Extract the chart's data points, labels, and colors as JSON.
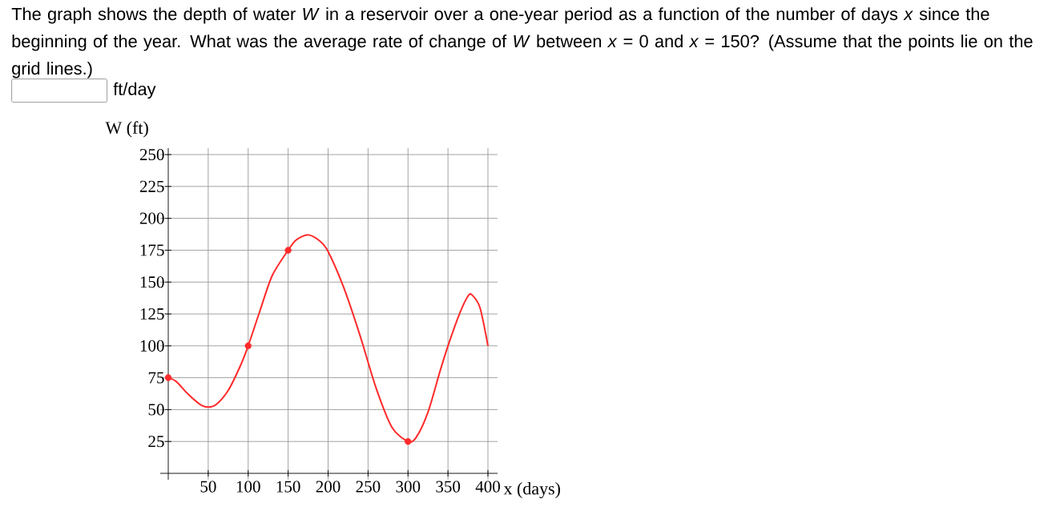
{
  "chart_data": {
    "type": "line",
    "title": "The graph shows the depth of water *W* in a reservoir over a one-year period as a function of the number of days *x* since the beginning of the year. What was the average rate of change of *W* between  *x* = 0  and  *x* = 150? (Assume that the points lie on the grid lines.)",
    "annotations": [
      "ft/day"
    ],
    "xlabel": "x (days)",
    "ylabel": "W (ft)",
    "xlim": [
      -10,
      412
    ],
    "ylim": [
      -5,
      255
    ],
    "xticks": [
      {
        "value": 0,
        "label": null
      },
      50,
      100,
      150,
      200,
      250,
      300,
      350,
      400
    ],
    "yticks": [
      {
        "value": 0,
        "label": null
      },
      25,
      50,
      75,
      100,
      125,
      150,
      175,
      200,
      225,
      250
    ],
    "grid": true,
    "series": [
      {
        "type": "line",
        "color": "#ff2a2a",
        "x": [
          0,
          10,
          25,
          40,
          50,
          60,
          75,
          90,
          100,
          115,
          130,
          150,
          160,
          175,
          190,
          200,
          220,
          240,
          260,
          280,
          300,
          310,
          325,
          340,
          350,
          365,
          375,
          380,
          390,
          400
        ],
        "values": [
          75,
          72,
          62,
          54,
          52,
          54,
          65,
          84,
          100,
          128,
          155,
          175,
          183,
          187,
          182,
          174,
          145,
          108,
          67,
          36,
          25,
          28,
          48,
          80,
          100,
          126,
          139,
          140,
          130,
          100
        ]
      },
      {
        "type": "scatter",
        "color": "#ff2a2a",
        "marker": "circle",
        "x": [
          0,
          100,
          150,
          300
        ],
        "values": [
          75,
          100,
          175,
          25
        ]
      }
    ]
  }
}
